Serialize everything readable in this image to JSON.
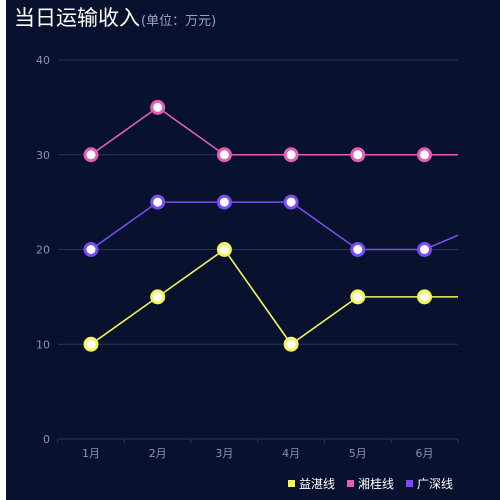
{
  "header": {
    "title": "当日运输收入",
    "subtitle": "(单位：万元)"
  },
  "colors": {
    "background": "#08112e",
    "grid": "#2b3555",
    "axis_text": "#8a93ad",
    "yixiang": "#f5f55a",
    "xianggui": "#e25fb5",
    "guangshen": "#7a4df2"
  },
  "chart_data": {
    "type": "line",
    "title": "当日运输收入",
    "subtitle": "(单位：万元)",
    "categories": [
      "1月",
      "2月",
      "3月",
      "4月",
      "5月",
      "6月",
      ""
    ],
    "ylim": [
      0,
      40
    ],
    "yticks": [
      0,
      10,
      20,
      30,
      40
    ],
    "grid": true,
    "legend_position": "bottom-right",
    "series": [
      {
        "name": "益湛线",
        "color": "#f5f55a",
        "values": [
          10,
          15,
          20,
          10,
          15,
          15,
          15
        ]
      },
      {
        "name": "湘桂线",
        "color": "#e25fb5",
        "values": [
          30,
          35,
          30,
          30,
          30,
          30,
          30
        ]
      },
      {
        "name": "广深线",
        "color": "#7a4df2",
        "values": [
          20,
          25,
          25,
          25,
          20,
          20,
          23
        ]
      }
    ]
  }
}
